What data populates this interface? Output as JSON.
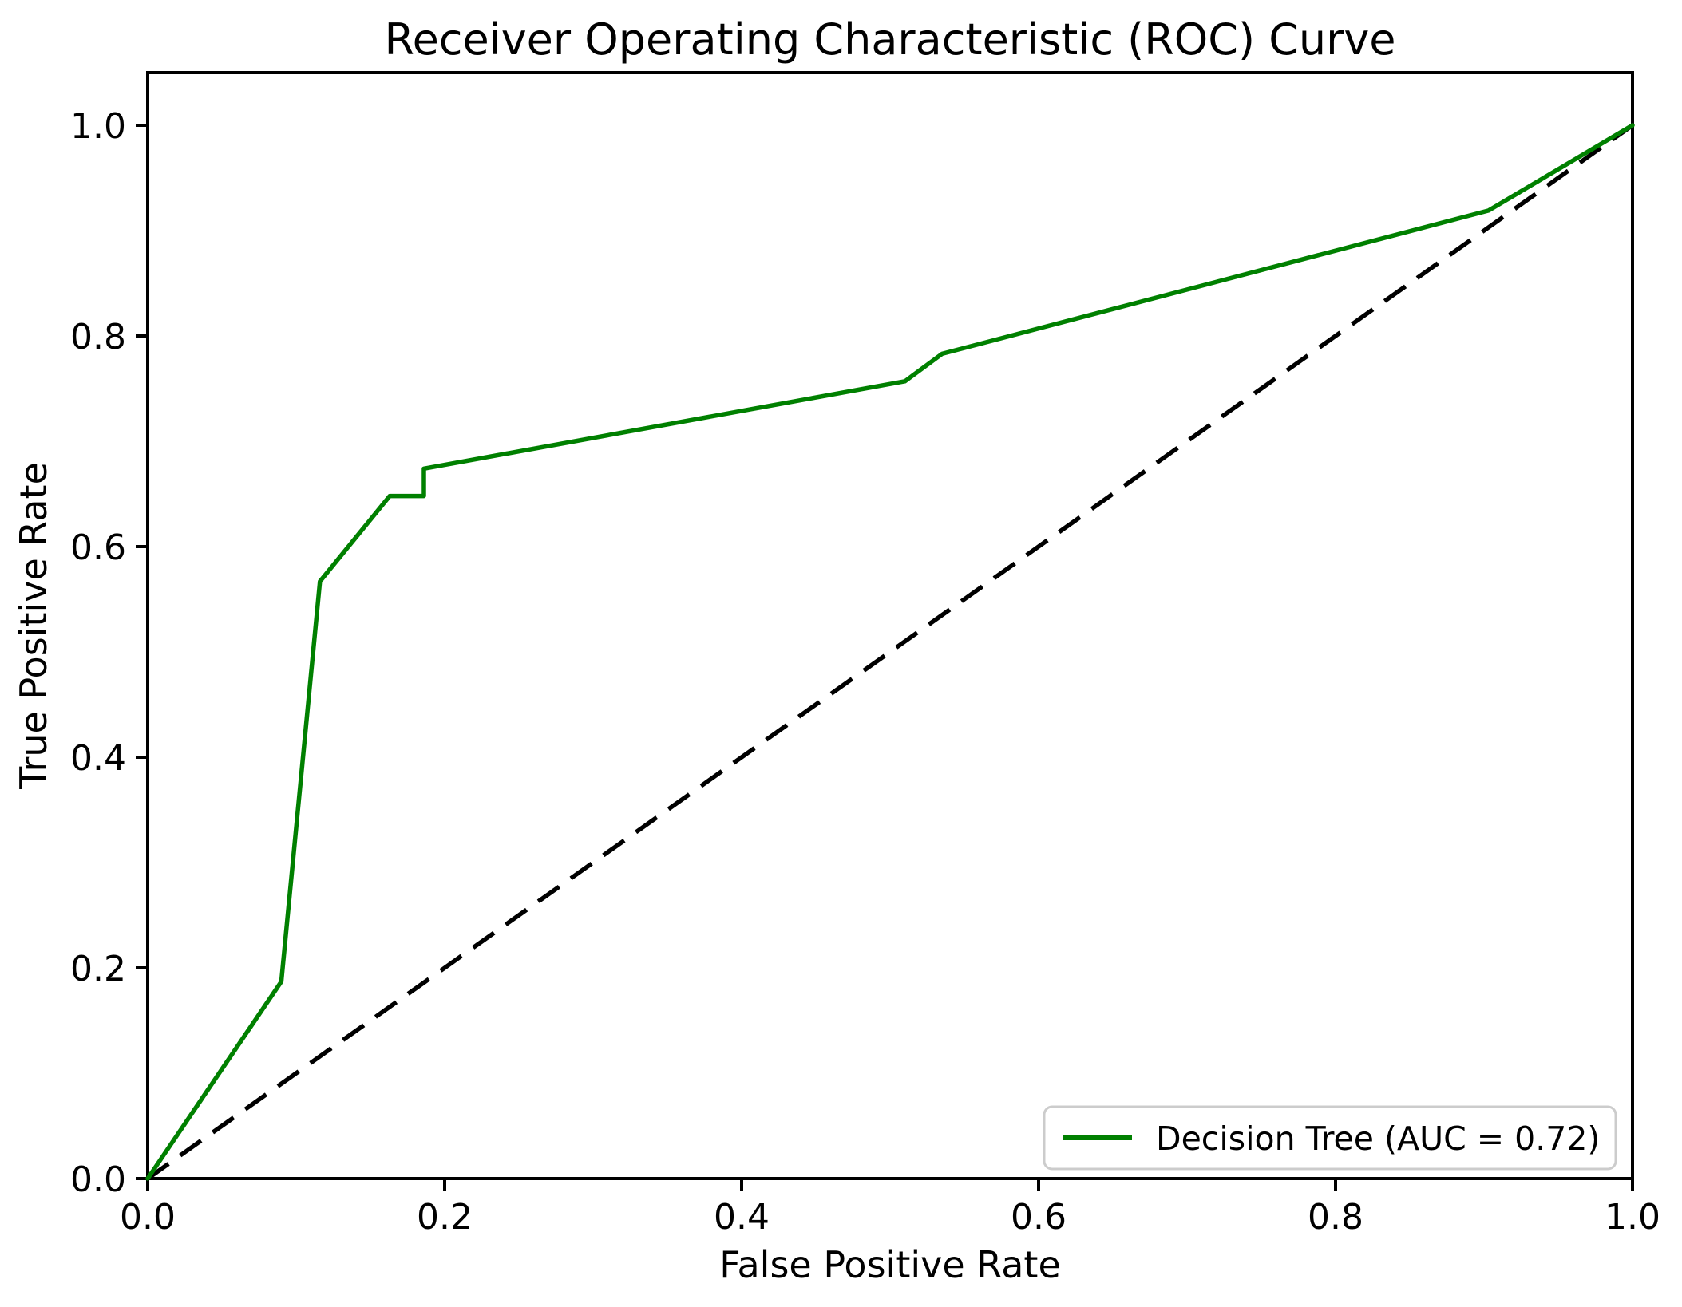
{
  "chart_data": {
    "type": "line",
    "title": "Receiver Operating Characteristic (ROC) Curve",
    "xlabel": "False Positive Rate",
    "ylabel": "True Positive Rate",
    "xlim": [
      0.0,
      1.0
    ],
    "ylim": [
      0.0,
      1.05
    ],
    "grid": false,
    "background_color": "#ffffff",
    "spine_color": "#000000",
    "x_ticks": {
      "values": [
        0.0,
        0.2,
        0.4,
        0.6,
        0.8,
        1.0
      ],
      "labels": [
        "0.0",
        "0.2",
        "0.4",
        "0.6",
        "0.8",
        "1.0"
      ]
    },
    "y_ticks": {
      "values": [
        0.0,
        0.2,
        0.4,
        0.6,
        0.8,
        1.0
      ],
      "labels": [
        "0.0",
        "0.2",
        "0.4",
        "0.6",
        "0.8",
        "1.0"
      ]
    },
    "series": [
      {
        "name": "Decision Tree ROC curve",
        "color": "#008000",
        "style": "solid",
        "auc": 0.72,
        "points": [
          [
            0.0,
            0.0
          ],
          [
            0.09,
            0.187
          ],
          [
            0.116,
            0.567
          ],
          [
            0.163,
            0.648
          ],
          [
            0.186,
            0.648
          ],
          [
            0.186,
            0.674
          ],
          [
            0.51,
            0.757
          ],
          [
            0.535,
            0.783
          ],
          [
            0.903,
            0.919
          ],
          [
            1.0,
            1.0
          ]
        ]
      },
      {
        "name": "Chance diagonal",
        "color": "#000000",
        "style": "dashed",
        "points": [
          [
            0.0,
            0.0
          ],
          [
            1.0,
            1.0
          ]
        ]
      }
    ],
    "legend": {
      "position": "lower right",
      "border_color": "#cccccc",
      "entries": [
        {
          "label": "Decision Tree (AUC = 0.72)",
          "color": "#008000",
          "style": "solid"
        }
      ]
    }
  }
}
